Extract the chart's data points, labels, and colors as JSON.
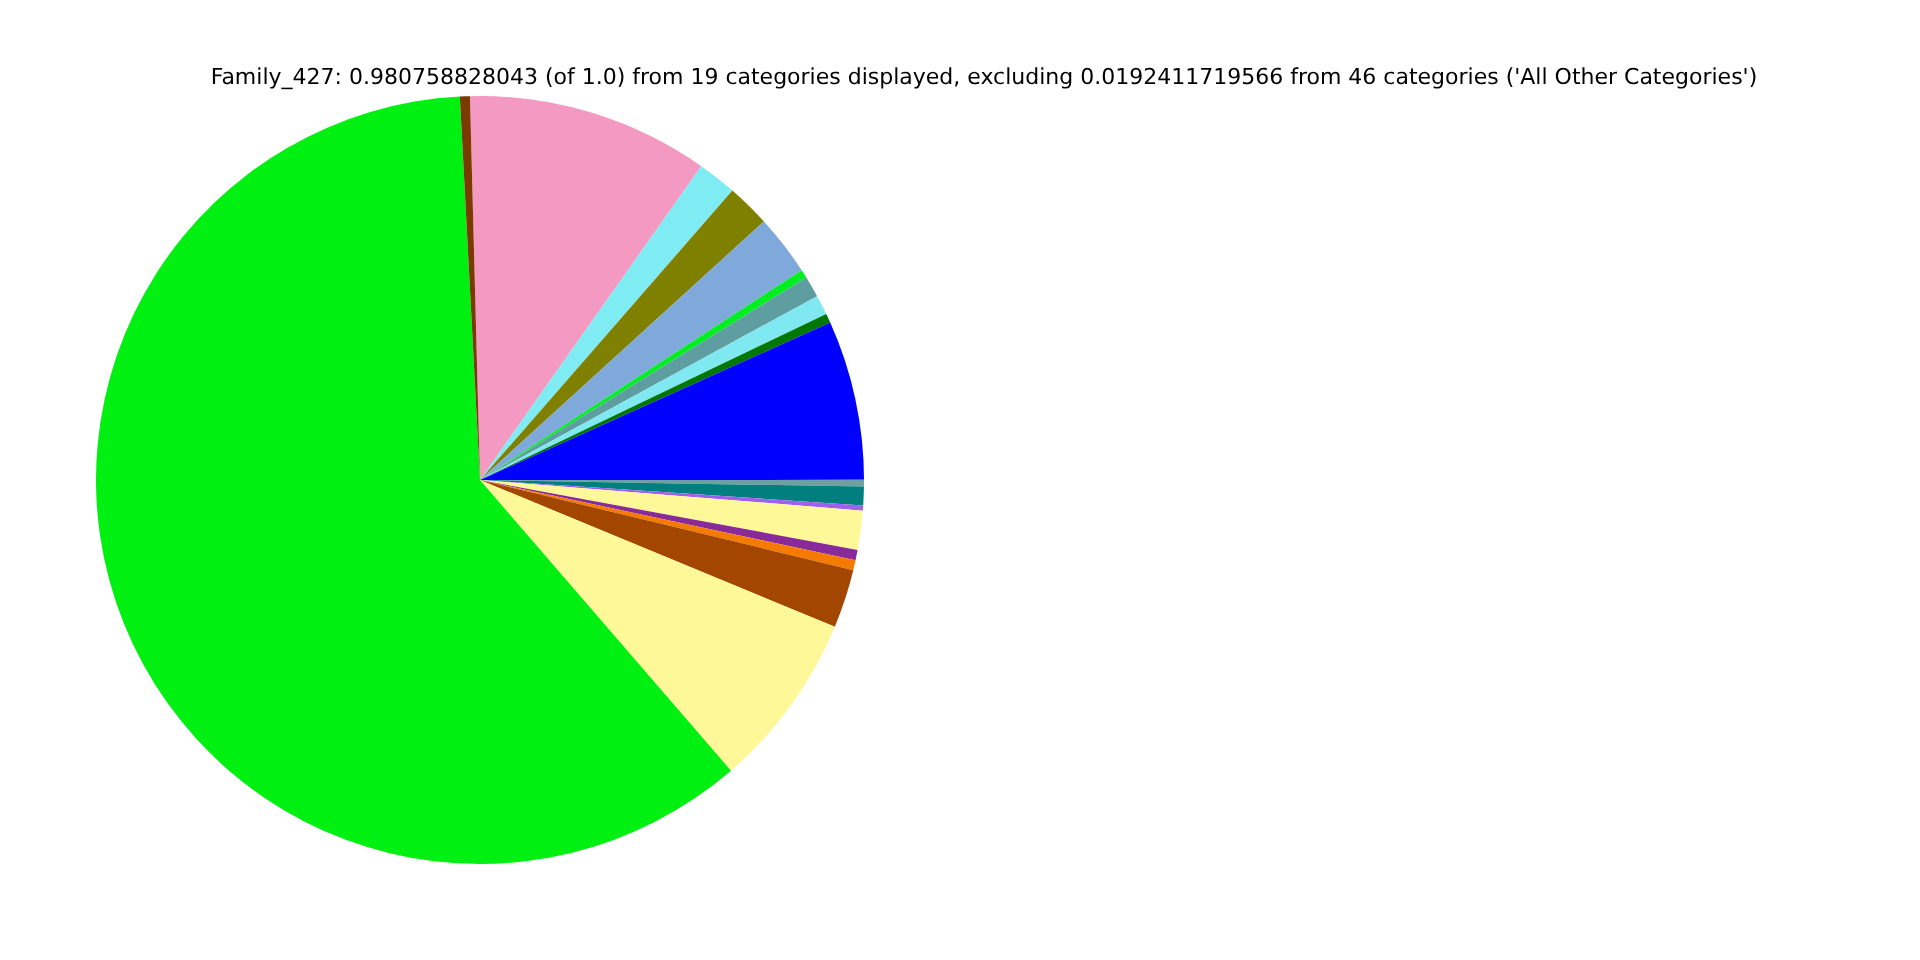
{
  "chart_data": {
    "type": "pie",
    "title": "Family_427: 0.980758828043 (of 1.0) from 19 categories displayed, excluding 0.0192411719566 from 46 categories ('All Other Categories')",
    "categories": [
      null,
      null,
      null,
      null,
      null,
      null,
      null,
      null,
      null,
      null,
      null,
      null,
      null,
      null,
      null,
      null,
      null,
      null,
      null
    ],
    "values": [
      10.19,
      1.64,
      1.83,
      2.56,
      0.36,
      0.89,
      0.83,
      0.39,
      6.72,
      0.28,
      0.78,
      0.22,
      1.64,
      0.44,
      0.42,
      2.47,
      7.42,
      60.5,
      0.42
    ],
    "colors": [
      "#f49ac2",
      "#7febf3",
      "#808000",
      "#7fa8db",
      "#00ee22",
      "#5f9ea0",
      "#7fe8f0",
      "#007700",
      "#0000ff",
      "#6fa0a0",
      "#007f7f",
      "#9f5fef",
      "#fff899",
      "#882a99",
      "#f47a00",
      "#a34600",
      "#fff899",
      "#00f012",
      "#7a3a00"
    ],
    "legend": false
  }
}
